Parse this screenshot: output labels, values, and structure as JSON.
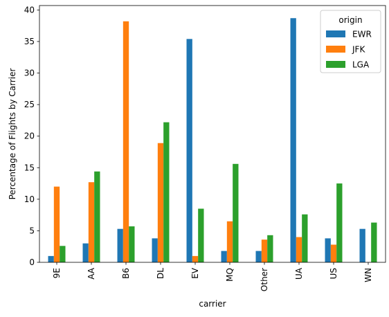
{
  "chart_data": {
    "type": "bar",
    "categories": [
      "9E",
      "AA",
      "B6",
      "DL",
      "EV",
      "MQ",
      "Other",
      "UA",
      "US",
      "WN"
    ],
    "series": [
      {
        "name": "EWR",
        "color": "#1f77b4",
        "values": [
          1.0,
          3.0,
          5.3,
          3.8,
          35.4,
          1.8,
          1.8,
          38.7,
          3.8,
          5.3
        ]
      },
      {
        "name": "JFK",
        "color": "#ff7f0e",
        "values": [
          12.0,
          12.7,
          38.2,
          18.9,
          1.0,
          6.5,
          3.6,
          4.0,
          2.8,
          0
        ]
      },
      {
        "name": "LGA",
        "color": "#2ca02c",
        "values": [
          2.6,
          14.4,
          5.7,
          22.2,
          8.5,
          15.6,
          4.3,
          7.6,
          12.5,
          6.3
        ]
      }
    ],
    "xlabel": "carrier",
    "ylabel": "Percentage of Flights by Carrier",
    "ylim": [
      0,
      40.7
    ],
    "yticks": [
      0,
      5,
      10,
      15,
      20,
      25,
      30,
      35,
      40
    ],
    "legend": {
      "title": "origin",
      "position": "top-right"
    },
    "grid": false
  }
}
